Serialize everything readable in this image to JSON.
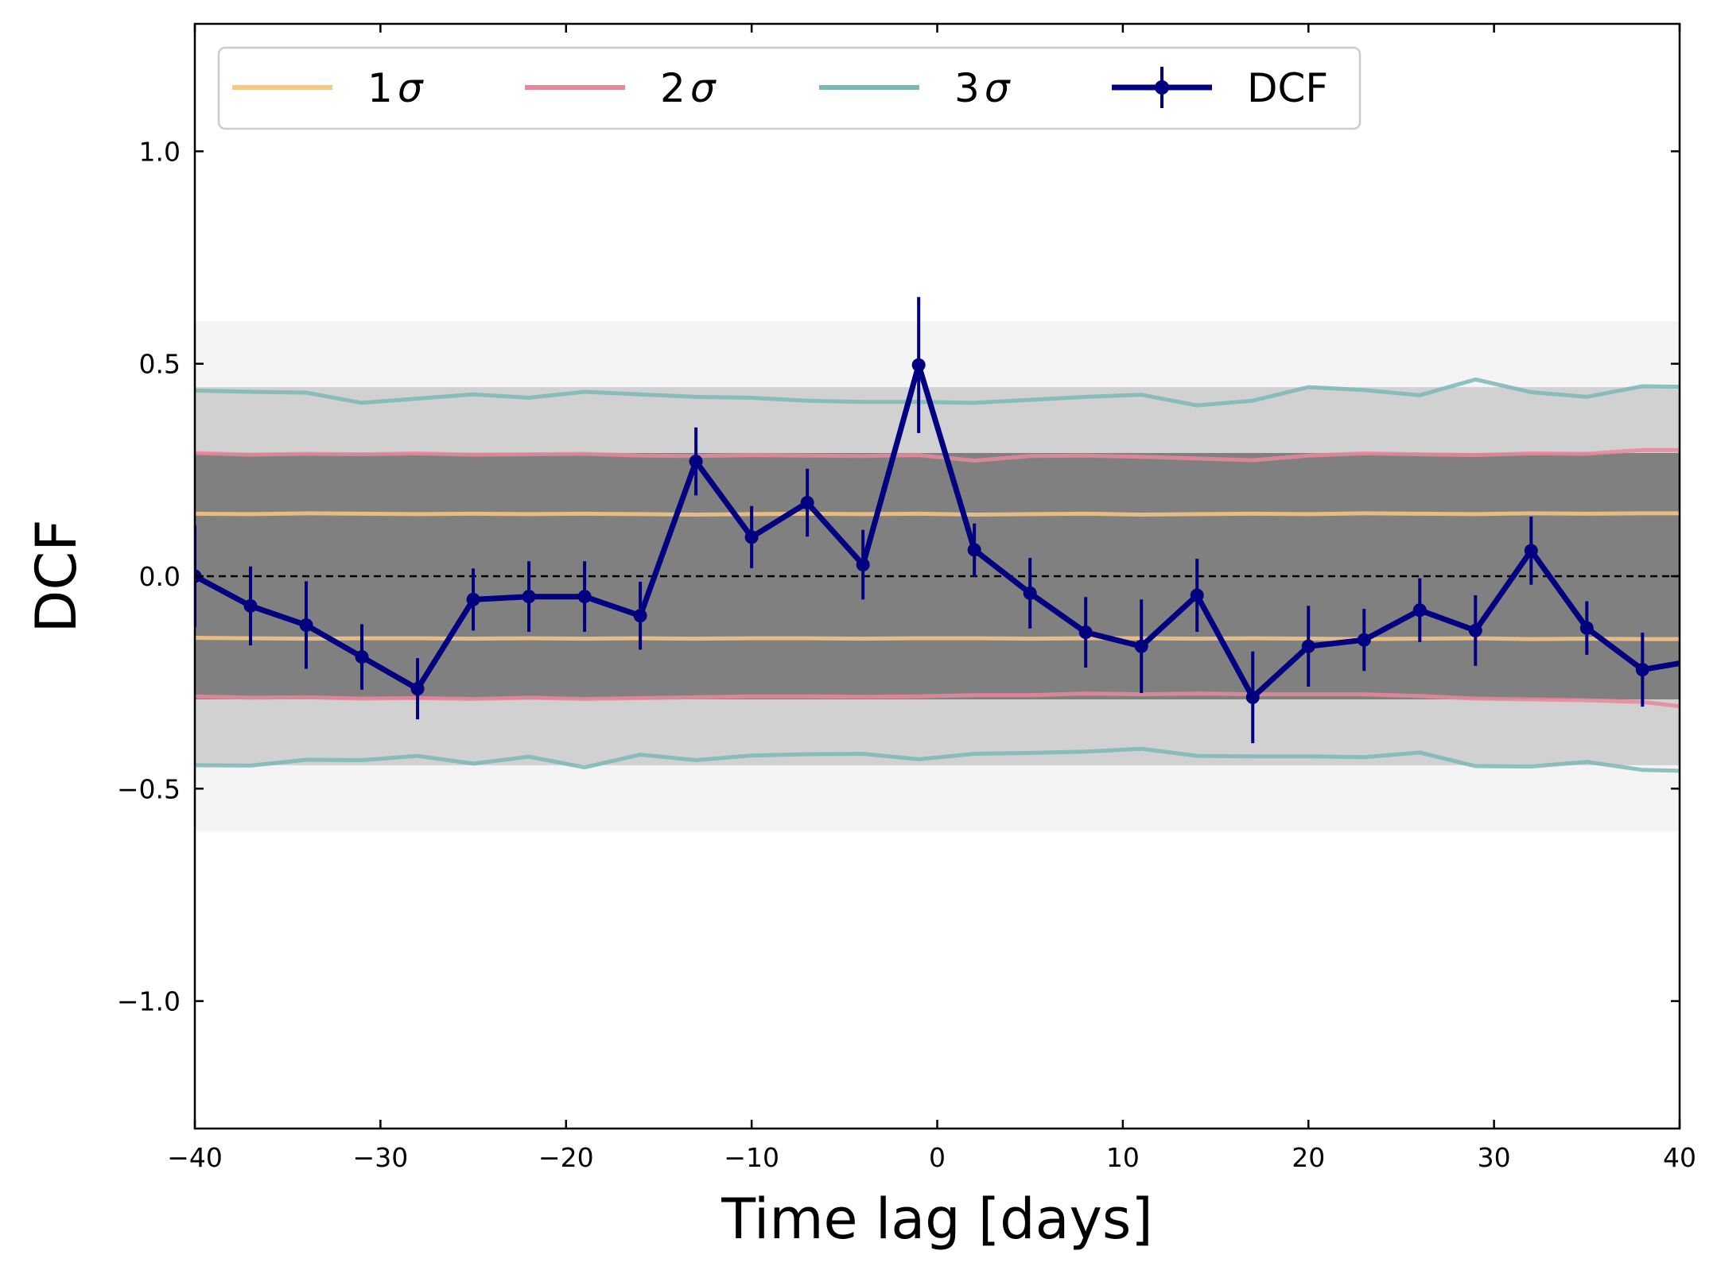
{
  "chart_data": {
    "type": "line",
    "title": "",
    "xlabel": "Time lag [days]",
    "ylabel": "DCF",
    "xlim": [
      -40,
      40
    ],
    "ylim": [
      -1.3,
      1.3
    ],
    "x_ticks": [
      -40,
      -30,
      -20,
      -10,
      0,
      10,
      20,
      30,
      40
    ],
    "x_tick_labels": [
      "−40",
      "−30",
      "−20",
      "−10",
      "0",
      "10",
      "20",
      "30",
      "40"
    ],
    "y_ticks": [
      -1.0,
      -0.5,
      0.0,
      0.5,
      1.0
    ],
    "y_tick_labels": [
      "−1.0",
      "−0.5",
      "0.0",
      "0.5",
      "1.0"
    ],
    "grid": false,
    "legend_position": "top",
    "zero_line": 0.0,
    "simulation_band": {
      "color": "#808080",
      "core_upper": 0.29,
      "core_lower": -0.29,
      "spread_upper": 0.6,
      "spread_lower": -0.6
    },
    "x": [
      -40,
      -37,
      -34,
      -31,
      -28,
      -25,
      -22,
      -19,
      -16,
      -13,
      -10,
      -7,
      -4,
      -1,
      2,
      5,
      8,
      11,
      14,
      17,
      20,
      23,
      26,
      29,
      32,
      35,
      38,
      40
    ],
    "series": [
      {
        "name": "1σ",
        "label_num": "1",
        "label_sym": "σ",
        "color": "#f9c784",
        "upper": [
          0.147,
          0.146,
          0.148,
          0.147,
          0.146,
          0.147,
          0.146,
          0.147,
          0.146,
          0.145,
          0.146,
          0.147,
          0.146,
          0.147,
          0.145,
          0.146,
          0.147,
          0.145,
          0.146,
          0.147,
          0.146,
          0.148,
          0.147,
          0.146,
          0.148,
          0.147,
          0.148,
          0.148
        ],
        "lower": [
          -0.145,
          -0.146,
          -0.147,
          -0.146,
          -0.146,
          -0.147,
          -0.146,
          -0.147,
          -0.146,
          -0.147,
          -0.146,
          -0.146,
          -0.147,
          -0.146,
          -0.146,
          -0.147,
          -0.146,
          -0.146,
          -0.147,
          -0.146,
          -0.147,
          -0.148,
          -0.147,
          -0.146,
          -0.148,
          -0.147,
          -0.148,
          -0.148
        ]
      },
      {
        "name": "2σ",
        "label_num": "2",
        "label_sym": "σ",
        "color": "#e8879c",
        "upper": [
          0.29,
          0.286,
          0.288,
          0.287,
          0.289,
          0.286,
          0.287,
          0.288,
          0.284,
          0.283,
          0.285,
          0.284,
          0.283,
          0.285,
          0.272,
          0.283,
          0.284,
          0.281,
          0.277,
          0.273,
          0.284,
          0.289,
          0.287,
          0.285,
          0.289,
          0.288,
          0.297,
          0.297
        ],
        "lower": [
          -0.283,
          -0.286,
          -0.285,
          -0.288,
          -0.287,
          -0.289,
          -0.286,
          -0.289,
          -0.287,
          -0.285,
          -0.283,
          -0.283,
          -0.284,
          -0.283,
          -0.28,
          -0.28,
          -0.276,
          -0.278,
          -0.276,
          -0.278,
          -0.278,
          -0.278,
          -0.282,
          -0.288,
          -0.29,
          -0.292,
          -0.296,
          -0.306
        ]
      },
      {
        "name": "3σ",
        "label_num": "3",
        "label_sym": "σ",
        "color": "#7ab8b6",
        "upper": [
          0.437,
          0.434,
          0.432,
          0.408,
          0.418,
          0.428,
          0.42,
          0.434,
          0.428,
          0.422,
          0.42,
          0.413,
          0.41,
          0.41,
          0.408,
          0.415,
          0.422,
          0.427,
          0.402,
          0.413,
          0.445,
          0.438,
          0.426,
          0.463,
          0.433,
          0.422,
          0.447,
          0.446
        ],
        "lower": [
          -0.445,
          -0.446,
          -0.432,
          -0.433,
          -0.423,
          -0.441,
          -0.425,
          -0.45,
          -0.42,
          -0.433,
          -0.422,
          -0.419,
          -0.418,
          -0.431,
          -0.418,
          -0.416,
          -0.413,
          -0.406,
          -0.423,
          -0.424,
          -0.424,
          -0.426,
          -0.415,
          -0.447,
          -0.448,
          -0.437,
          -0.456,
          -0.458
        ]
      },
      {
        "name": "DCF",
        "color": "#000080",
        "y": [
          0.0,
          -0.07,
          -0.115,
          -0.19,
          -0.265,
          -0.055,
          -0.048,
          -0.048,
          -0.093,
          0.27,
          0.092,
          0.173,
          0.027,
          0.497,
          0.062,
          -0.04,
          -0.132,
          -0.165,
          -0.045,
          -0.285,
          -0.165,
          -0.15,
          -0.08,
          -0.128,
          0.06,
          -0.122,
          -0.22,
          -0.205
        ],
        "y_err": [
          0.12,
          0.093,
          0.103,
          0.077,
          0.072,
          0.073,
          0.083,
          0.083,
          0.08,
          0.08,
          0.073,
          0.08,
          0.082,
          0.16,
          0.062,
          0.083,
          0.083,
          0.11,
          0.086,
          0.108,
          0.095,
          0.073,
          0.075,
          0.083,
          0.08,
          0.063,
          0.087,
          0.0
        ]
      }
    ]
  }
}
